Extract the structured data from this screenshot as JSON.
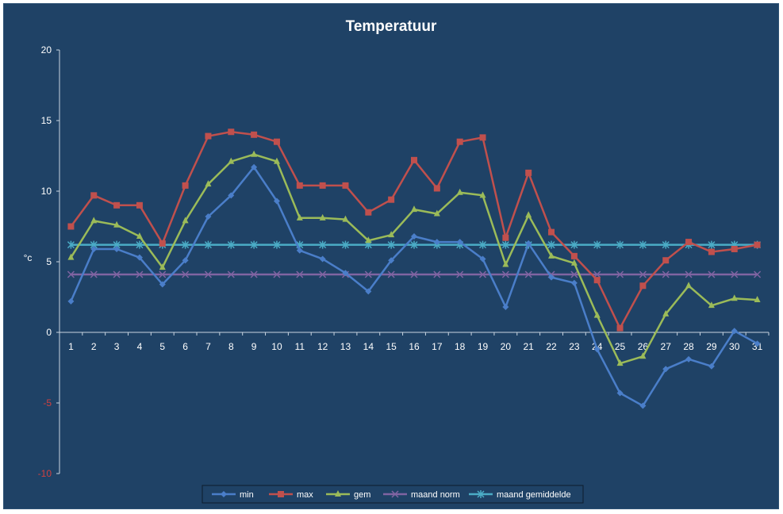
{
  "chart_data": {
    "type": "line",
    "title": "Temperatuur",
    "xlabel": "",
    "ylabel": "°c",
    "ylim": [
      -10,
      20
    ],
    "yticks": [
      -10,
      -5,
      0,
      5,
      10,
      15,
      20
    ],
    "categories": [
      "1",
      "2",
      "3",
      "4",
      "5",
      "6",
      "7",
      "8",
      "9",
      "10",
      "11",
      "12",
      "13",
      "14",
      "15",
      "16",
      "17",
      "18",
      "19",
      "20",
      "21",
      "22",
      "23",
      "24",
      "25",
      "26",
      "27",
      "28",
      "29",
      "30",
      "31"
    ],
    "series": [
      {
        "name": "min",
        "color": "#4a7ec9",
        "marker": "diamond",
        "values": [
          2.2,
          5.9,
          5.9,
          5.3,
          3.4,
          5.1,
          8.2,
          9.7,
          11.7,
          9.3,
          5.8,
          5.2,
          4.2,
          2.9,
          5.1,
          6.8,
          6.4,
          6.4,
          5.2,
          1.8,
          6.3,
          3.9,
          3.5,
          -1.2,
          -4.3,
          -5.2,
          -2.6,
          -1.9,
          -2.4,
          0.1,
          -0.8
        ]
      },
      {
        "name": "max",
        "color": "#c0504d",
        "marker": "square",
        "values": [
          7.5,
          9.7,
          9.0,
          9.0,
          6.3,
          10.4,
          13.9,
          14.2,
          14.0,
          13.5,
          10.4,
          10.4,
          10.4,
          8.5,
          9.4,
          12.2,
          10.2,
          13.5,
          13.8,
          6.7,
          11.3,
          7.1,
          5.4,
          3.7,
          0.3,
          3.3,
          5.1,
          6.4,
          5.7,
          5.9,
          6.2
        ]
      },
      {
        "name": "gem",
        "color": "#9bbb59",
        "marker": "triangle",
        "values": [
          5.3,
          7.9,
          7.6,
          6.8,
          4.6,
          7.9,
          10.5,
          12.1,
          12.6,
          12.1,
          8.1,
          8.1,
          8.0,
          6.5,
          6.9,
          8.7,
          8.4,
          9.9,
          9.7,
          4.8,
          8.3,
          5.4,
          4.9,
          1.2,
          -2.2,
          -1.7,
          1.3,
          3.3,
          1.9,
          2.4,
          2.3
        ]
      },
      {
        "name": "maand norm",
        "color": "#8064a2",
        "marker": "x",
        "values": [
          4.1,
          4.1,
          4.1,
          4.1,
          4.1,
          4.1,
          4.1,
          4.1,
          4.1,
          4.1,
          4.1,
          4.1,
          4.1,
          4.1,
          4.1,
          4.1,
          4.1,
          4.1,
          4.1,
          4.1,
          4.1,
          4.1,
          4.1,
          4.1,
          4.1,
          4.1,
          4.1,
          4.1,
          4.1,
          4.1,
          4.1
        ]
      },
      {
        "name": "maand gemiddelde",
        "color": "#4bacc6",
        "marker": "star",
        "values": [
          6.2,
          6.2,
          6.2,
          6.2,
          6.2,
          6.2,
          6.2,
          6.2,
          6.2,
          6.2,
          6.2,
          6.2,
          6.2,
          6.2,
          6.2,
          6.2,
          6.2,
          6.2,
          6.2,
          6.2,
          6.2,
          6.2,
          6.2,
          6.2,
          6.2,
          6.2,
          6.2,
          6.2,
          6.2,
          6.2,
          6.2
        ]
      }
    ],
    "grid": false,
    "legend": "bottom",
    "colors": {
      "background": "#1f4266",
      "text": "#ffffff",
      "negative_tick": "#d04040",
      "axis": "#c8d4e0"
    }
  }
}
